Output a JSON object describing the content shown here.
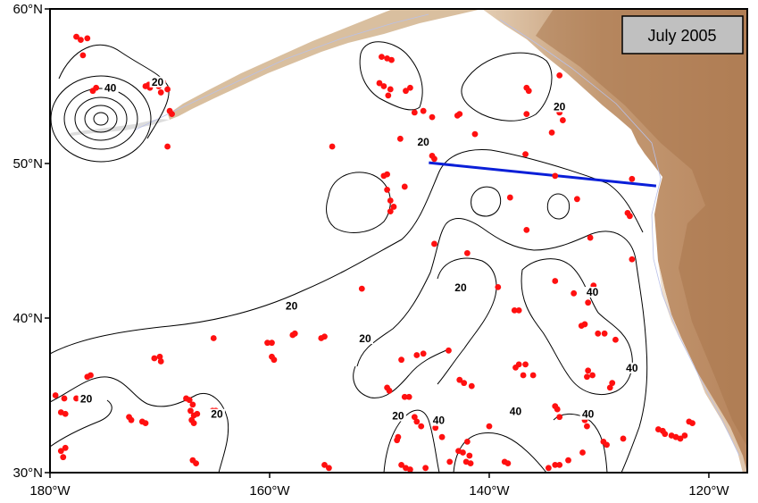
{
  "title_box": "July 2005",
  "map": {
    "lon_range": [
      -180,
      -116.5
    ],
    "lat_range": [
      30,
      60
    ],
    "x_ticks": [
      {
        "lon": -180,
        "label": "180°W"
      },
      {
        "lon": -160,
        "label": "160°W"
      },
      {
        "lon": -140,
        "label": "140°W"
      },
      {
        "lon": -120,
        "label": "120°W"
      }
    ],
    "y_ticks": [
      {
        "lat": 60,
        "label": "60°N"
      },
      {
        "lat": 50,
        "label": "50°N"
      },
      {
        "lat": 40,
        "label": "40°N"
      },
      {
        "lat": 30,
        "label": "30°N"
      }
    ],
    "contour_labels": [
      {
        "text": "40",
        "lon": -174.5,
        "lat": 54.7
      },
      {
        "text": "20",
        "lon": -170.2,
        "lat": 55.1
      },
      {
        "text": "20",
        "lon": -146.0,
        "lat": 51.2
      },
      {
        "text": "20",
        "lon": -133.6,
        "lat": 53.5
      },
      {
        "text": "20",
        "lon": -158.0,
        "lat": 40.6
      },
      {
        "text": "20",
        "lon": -151.3,
        "lat": 38.5
      },
      {
        "text": "20",
        "lon": -142.6,
        "lat": 41.8
      },
      {
        "text": "40",
        "lon": -130.6,
        "lat": 41.5
      },
      {
        "text": "40",
        "lon": -127.0,
        "lat": 36.6
      },
      {
        "text": "20",
        "lon": -176.7,
        "lat": 34.6
      },
      {
        "text": "20",
        "lon": -164.8,
        "lat": 33.6
      },
      {
        "text": "20",
        "lon": -148.3,
        "lat": 33.5
      },
      {
        "text": "40",
        "lon": -144.6,
        "lat": 33.2
      },
      {
        "text": "40",
        "lon": -137.6,
        "lat": 33.8
      },
      {
        "text": "40",
        "lon": -131.0,
        "lat": 33.6
      }
    ],
    "transect_line": {
      "color": "#0a1fd8",
      "start": [
        -145.5,
        50.05
      ],
      "end": [
        -124.8,
        48.55
      ]
    },
    "float_color": "#ff1010",
    "floats": [
      [
        -177.6,
        58.2
      ],
      [
        -177.2,
        58.0
      ],
      [
        -176.6,
        58.1
      ],
      [
        -177.0,
        57.0
      ],
      [
        -175.8,
        54.9
      ],
      [
        -176.1,
        54.7
      ],
      [
        -171.3,
        55.0
      ],
      [
        -170.9,
        54.9
      ],
      [
        -171.0,
        55.1
      ],
      [
        -170.1,
        55.0
      ],
      [
        -169.7,
        55.3
      ],
      [
        -169.3,
        54.8
      ],
      [
        -169.9,
        54.6
      ],
      [
        -168.9,
        53.2
      ],
      [
        -169.1,
        53.4
      ],
      [
        -169.3,
        51.1
      ],
      [
        -149.8,
        56.9
      ],
      [
        -149.3,
        56.8
      ],
      [
        -148.9,
        56.7
      ],
      [
        -150.0,
        55.2
      ],
      [
        -149.6,
        55.0
      ],
      [
        -149.0,
        54.8
      ],
      [
        -149.2,
        54.4
      ],
      [
        -147.6,
        54.7
      ],
      [
        -147.2,
        54.9
      ],
      [
        -146.8,
        53.3
      ],
      [
        -146.0,
        53.4
      ],
      [
        -145.2,
        53.0
      ],
      [
        -142.9,
        53.1
      ],
      [
        -142.7,
        53.2
      ],
      [
        -141.3,
        51.9
      ],
      [
        -136.6,
        54.9
      ],
      [
        -136.4,
        54.7
      ],
      [
        -133.6,
        55.7
      ],
      [
        -136.6,
        53.2
      ],
      [
        -133.6,
        53.3
      ],
      [
        -133.3,
        52.8
      ],
      [
        -134.3,
        52.0
      ],
      [
        -154.3,
        51.1
      ],
      [
        -148.1,
        51.6
      ],
      [
        -145.2,
        50.5
      ],
      [
        -145.0,
        50.3
      ],
      [
        -136.7,
        50.6
      ],
      [
        -149.6,
        49.2
      ],
      [
        -149.3,
        49.3
      ],
      [
        -147.7,
        48.5
      ],
      [
        -149.3,
        48.3
      ],
      [
        -149.0,
        47.6
      ],
      [
        -148.7,
        47.2
      ],
      [
        -149.0,
        46.9
      ],
      [
        -138.1,
        47.8
      ],
      [
        -132.0,
        47.7
      ],
      [
        -134.0,
        49.2
      ],
      [
        -127.0,
        49.0
      ],
      [
        -127.4,
        46.8
      ],
      [
        -127.2,
        46.6
      ],
      [
        -136.6,
        45.7
      ],
      [
        -130.8,
        45.2
      ],
      [
        -145.0,
        44.8
      ],
      [
        -142.0,
        44.2
      ],
      [
        -127.0,
        43.8
      ],
      [
        -151.6,
        41.9
      ],
      [
        -139.2,
        42.0
      ],
      [
        -134.0,
        42.4
      ],
      [
        -132.3,
        41.6
      ],
      [
        -130.5,
        42.1
      ],
      [
        -131.0,
        41.0
      ],
      [
        -137.7,
        40.5
      ],
      [
        -137.3,
        40.5
      ],
      [
        -131.3,
        39.6
      ],
      [
        -131.6,
        39.5
      ],
      [
        -130.1,
        39.0
      ],
      [
        -129.5,
        39.0
      ],
      [
        -128.5,
        38.6
      ],
      [
        -155.0,
        38.8
      ],
      [
        -155.3,
        38.7
      ],
      [
        -157.9,
        38.9
      ],
      [
        -157.7,
        39.0
      ],
      [
        -160.2,
        38.4
      ],
      [
        -159.8,
        38.4
      ],
      [
        -159.8,
        37.5
      ],
      [
        -159.6,
        37.3
      ],
      [
        -165.1,
        38.7
      ],
      [
        -170.5,
        37.4
      ],
      [
        -170.0,
        37.5
      ],
      [
        -169.9,
        37.2
      ],
      [
        -143.7,
        37.9
      ],
      [
        -146.6,
        37.6
      ],
      [
        -146.0,
        37.7
      ],
      [
        -148.0,
        37.3
      ],
      [
        -137.3,
        37.0
      ],
      [
        -136.7,
        37.0
      ],
      [
        -137.6,
        36.8
      ],
      [
        -136.9,
        36.3
      ],
      [
        -136.0,
        36.3
      ],
      [
        -131.0,
        36.6
      ],
      [
        -131.1,
        36.2
      ],
      [
        -130.6,
        36.3
      ],
      [
        -128.8,
        35.8
      ],
      [
        -129.0,
        35.5
      ],
      [
        -142.7,
        36.0
      ],
      [
        -142.3,
        35.8
      ],
      [
        -141.6,
        35.6
      ],
      [
        -149.3,
        35.5
      ],
      [
        -149.1,
        35.3
      ],
      [
        -147.7,
        34.9
      ],
      [
        -147.3,
        34.9
      ],
      [
        -134.0,
        34.3
      ],
      [
        -133.8,
        34.1
      ],
      [
        -133.6,
        33.6
      ],
      [
        -131.3,
        33.4
      ],
      [
        -131.1,
        33.0
      ],
      [
        -146.8,
        33.6
      ],
      [
        -146.6,
        33.3
      ],
      [
        -146.2,
        33.0
      ],
      [
        -148.3,
        32.3
      ],
      [
        -148.4,
        32.1
      ],
      [
        -144.3,
        32.3
      ],
      [
        -142.0,
        32.0
      ],
      [
        -127.8,
        32.2
      ],
      [
        -124.6,
        32.8
      ],
      [
        -124.2,
        32.7
      ],
      [
        -124.0,
        32.5
      ],
      [
        -123.4,
        32.4
      ],
      [
        -123.0,
        32.3
      ],
      [
        -122.6,
        32.2
      ],
      [
        -122.2,
        32.4
      ],
      [
        -121.8,
        33.3
      ],
      [
        -121.5,
        33.2
      ],
      [
        -179.5,
        35.0
      ],
      [
        -178.7,
        34.8
      ],
      [
        -177.6,
        34.8
      ],
      [
        -179.0,
        33.9
      ],
      [
        -178.6,
        33.8
      ],
      [
        -176.6,
        36.2
      ],
      [
        -176.3,
        36.3
      ],
      [
        -178.6,
        31.6
      ],
      [
        -179.0,
        31.4
      ],
      [
        -178.8,
        31.0
      ],
      [
        -172.8,
        33.6
      ],
      [
        -172.6,
        33.4
      ],
      [
        -171.6,
        33.3
      ],
      [
        -171.3,
        33.2
      ],
      [
        -167.6,
        34.8
      ],
      [
        -167.3,
        34.7
      ],
      [
        -167.0,
        34.4
      ],
      [
        -167.2,
        34.0
      ],
      [
        -166.9,
        33.7
      ],
      [
        -167.1,
        33.4
      ],
      [
        -166.9,
        33.2
      ],
      [
        -166.6,
        33.8
      ],
      [
        -165.2,
        34.0
      ],
      [
        -164.9,
        34.0
      ],
      [
        -167.0,
        30.8
      ],
      [
        -166.7,
        30.6
      ],
      [
        -155.0,
        30.5
      ],
      [
        -154.6,
        30.3
      ],
      [
        -148.0,
        30.5
      ],
      [
        -147.6,
        30.3
      ],
      [
        -147.2,
        30.2
      ],
      [
        -145.8,
        30.3
      ],
      [
        -143.6,
        30.7
      ],
      [
        -142.8,
        31.4
      ],
      [
        -142.4,
        31.3
      ],
      [
        -141.8,
        31.1
      ],
      [
        -142.1,
        30.7
      ],
      [
        -141.7,
        30.6
      ],
      [
        -138.6,
        30.7
      ],
      [
        -138.3,
        30.6
      ],
      [
        -134.6,
        30.3
      ],
      [
        -134.0,
        30.5
      ],
      [
        -133.6,
        30.5
      ],
      [
        -132.8,
        30.8
      ],
      [
        -131.5,
        31.3
      ],
      [
        -129.6,
        32.0
      ],
      [
        -129.3,
        31.8
      ],
      [
        -144.9,
        32.9
      ],
      [
        -140.0,
        33.0
      ]
    ]
  }
}
